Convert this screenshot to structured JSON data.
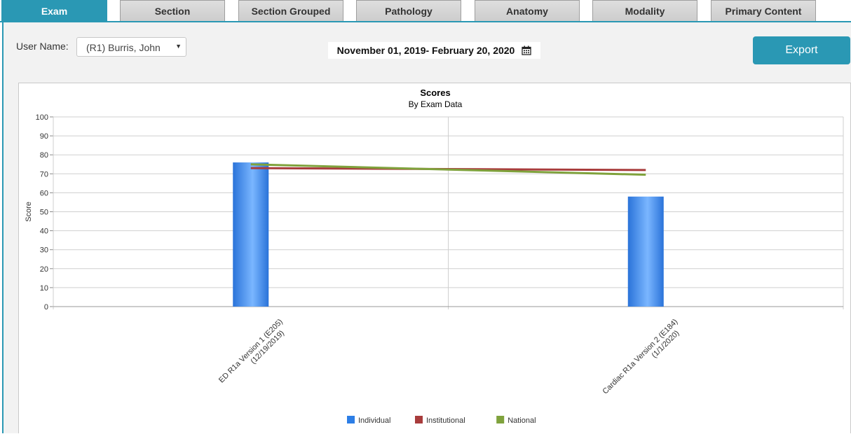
{
  "tabs": [
    {
      "label": "Exam",
      "active": true
    },
    {
      "label": "Section",
      "active": false
    },
    {
      "label": "Section Grouped",
      "active": false
    },
    {
      "label": "Pathology",
      "active": false
    },
    {
      "label": "Anatomy",
      "active": false
    },
    {
      "label": "Modality",
      "active": false
    },
    {
      "label": "Primary Content",
      "active": false
    }
  ],
  "filters": {
    "user_label": "User Name:",
    "user_value": "(R1) Burris, John",
    "date_range": "November 01, 2019- February 20, 2020",
    "date_icon": "calendar-icon"
  },
  "export_label": "Export",
  "colors": {
    "accent": "#2a98b4",
    "individual": "#2d7ee6",
    "institutional": "#a83c3c",
    "national": "#7fa23c"
  },
  "chart_data": {
    "type": "bar",
    "title": "Scores",
    "subtitle": "By Exam Data",
    "ylabel": "Score",
    "ylim": [
      0,
      100
    ],
    "yticks": [
      0,
      10,
      20,
      30,
      40,
      50,
      60,
      70,
      80,
      90,
      100
    ],
    "categories": [
      "ED R1a Version 1 (E205)\n(12/19/2019)",
      "Cardiac R1a Version 2 (E184)\n(1/1/2020)"
    ],
    "series": [
      {
        "name": "Individual",
        "type": "bar",
        "color": "#2d7ee6",
        "values": [
          76,
          58
        ]
      },
      {
        "name": "Institutional",
        "type": "line",
        "color": "#a83c3c",
        "values": [
          73,
          72
        ]
      },
      {
        "name": "National",
        "type": "line",
        "color": "#7fa23c",
        "values": [
          75,
          69.5
        ]
      }
    ],
    "grid": true,
    "legend": "bottom-center"
  }
}
